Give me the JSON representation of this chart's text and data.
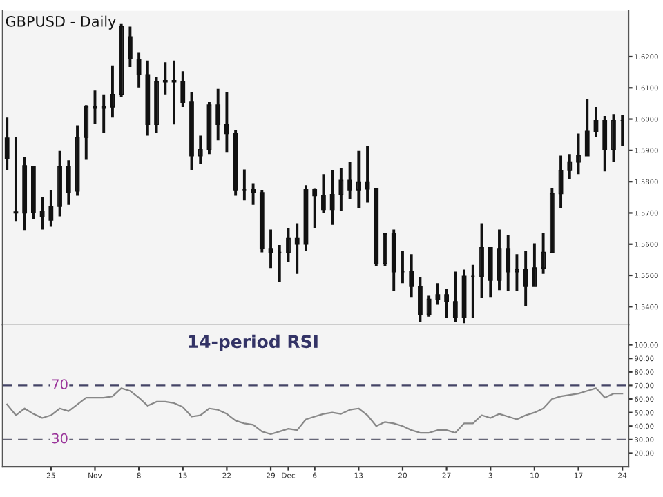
{
  "chart_data": [
    {
      "type": "candlestick",
      "title": "GBPUSD - Daily",
      "color": "#111111",
      "tick_labels": "y",
      "grid": false,
      "categories": [
        null,
        null,
        null,
        null,
        null,
        null,
        null,
        null,
        null,
        null,
        null,
        null,
        null,
        null,
        null,
        null,
        null,
        null,
        null,
        null,
        null,
        null,
        null,
        null,
        null,
        null,
        null,
        null,
        null,
        null,
        null,
        null,
        null,
        null,
        null,
        null,
        null,
        null,
        null,
        null,
        null,
        null,
        null,
        null,
        null,
        null,
        null,
        null,
        null,
        null,
        null,
        null,
        null,
        null,
        null,
        null,
        null,
        null,
        null,
        null,
        null,
        null,
        null,
        null,
        null,
        null,
        null,
        null,
        null,
        null,
        null
      ],
      "ohlc": [
        [
          1.5939,
          1.6005,
          1.5836,
          1.5873
        ],
        [
          1.5703,
          1.5944,
          1.5674,
          1.57
        ],
        [
          1.5851,
          1.588,
          1.5645,
          1.57
        ],
        [
          1.5848,
          1.5851,
          1.5681,
          1.5703
        ],
        [
          1.5706,
          1.5751,
          1.5647,
          1.5689
        ],
        [
          1.5677,
          1.5774,
          1.5656,
          1.5721
        ],
        [
          1.5721,
          1.5898,
          1.5689,
          1.5848
        ],
        [
          1.5848,
          1.5868,
          1.5726,
          1.5765
        ],
        [
          1.577,
          1.598,
          1.5755,
          1.5942
        ],
        [
          1.5942,
          1.6045,
          1.587,
          1.6039
        ],
        [
          1.6039,
          1.6091,
          1.5986,
          1.6035
        ],
        [
          1.6035,
          1.6079,
          1.5957,
          1.6039
        ],
        [
          1.6039,
          1.6172,
          1.6005,
          1.6079
        ],
        [
          1.6079,
          1.6304,
          1.6072,
          1.6296
        ],
        [
          1.6263,
          1.6296,
          1.6167,
          1.6193
        ],
        [
          1.619,
          1.6212,
          1.6101,
          1.6142
        ],
        [
          1.6142,
          1.6187,
          1.5947,
          1.5983
        ],
        [
          1.5983,
          1.6134,
          1.5957,
          1.6119
        ],
        [
          1.6119,
          1.6182,
          1.6079,
          1.6123
        ],
        [
          1.6123,
          1.6187,
          1.5983,
          1.6119
        ],
        [
          1.6119,
          1.6153,
          1.6039,
          1.6054
        ],
        [
          1.6054,
          1.6086,
          1.5836,
          1.5883
        ],
        [
          1.5883,
          1.5947,
          1.5858,
          1.5902
        ],
        [
          1.5902,
          1.6054,
          1.5888,
          1.6045
        ],
        [
          1.6045,
          1.6097,
          1.5932,
          1.5983
        ],
        [
          1.5983,
          1.6086,
          1.5895,
          1.5954
        ],
        [
          1.5954,
          1.5966,
          1.5755,
          1.5774
        ],
        [
          1.5774,
          1.5839,
          1.574,
          1.5774
        ],
        [
          1.5774,
          1.5795,
          1.5726,
          1.5765
        ],
        [
          1.5765,
          1.5774,
          1.5574,
          1.5586
        ],
        [
          1.5586,
          1.5647,
          1.5524,
          1.5574
        ],
        [
          1.5574,
          1.5597,
          1.548,
          1.5574
        ],
        [
          1.5574,
          1.5652,
          1.5544,
          1.5618
        ],
        [
          1.5618,
          1.5667,
          1.5505,
          1.56
        ],
        [
          1.56,
          1.5789,
          1.5578,
          1.5774
        ],
        [
          1.5774,
          1.5777,
          1.5652,
          1.5755
        ],
        [
          1.5755,
          1.5824,
          1.57,
          1.5711
        ],
        [
          1.5711,
          1.5836,
          1.5662,
          1.5759
        ],
        [
          1.5759,
          1.5843,
          1.5706,
          1.5804
        ],
        [
          1.5804,
          1.5863,
          1.5745,
          1.5774
        ],
        [
          1.5774,
          1.5898,
          1.5715,
          1.5799
        ],
        [
          1.5799,
          1.5913,
          1.5733,
          1.5777
        ],
        [
          1.5777,
          1.5777,
          1.553,
          1.5538
        ],
        [
          1.5538,
          1.5637,
          1.553,
          1.5633
        ],
        [
          1.5633,
          1.5647,
          1.545,
          1.5512
        ],
        [
          1.5512,
          1.5578,
          1.5475,
          1.5512
        ],
        [
          1.5512,
          1.5568,
          1.5431,
          1.5465
        ],
        [
          1.5465,
          1.5494,
          1.535,
          1.5376
        ],
        [
          1.5376,
          1.5435,
          1.5368,
          1.5424
        ],
        [
          1.5424,
          1.5475,
          1.5406,
          1.5438
        ],
        [
          1.5438,
          1.5456,
          1.5365,
          1.5416
        ],
        [
          1.5416,
          1.5512,
          1.535,
          1.5365
        ],
        [
          1.5365,
          1.5519,
          1.5347,
          1.5497
        ],
        [
          1.5497,
          1.5534,
          1.5365,
          1.5497
        ],
        [
          1.5497,
          1.5667,
          1.5427,
          1.5589
        ],
        [
          1.5589,
          1.5589,
          1.5431,
          1.5485
        ],
        [
          1.5485,
          1.5647,
          1.5453,
          1.5586
        ],
        [
          1.5586,
          1.563,
          1.545,
          1.5512
        ],
        [
          1.5512,
          1.5568,
          1.545,
          1.5519
        ],
        [
          1.5519,
          1.5578,
          1.5402,
          1.5465
        ],
        [
          1.5465,
          1.5603,
          1.5465,
          1.5524
        ],
        [
          1.5524,
          1.5637,
          1.5505,
          1.5574
        ],
        [
          1.5574,
          1.578,
          1.5574,
          1.5762
        ],
        [
          1.5762,
          1.5883,
          1.5715,
          1.5836
        ],
        [
          1.5836,
          1.5888,
          1.5807,
          1.5863
        ],
        [
          1.5863,
          1.5954,
          1.5824,
          1.5883
        ],
        [
          1.5883,
          1.6064,
          1.5883,
          1.5961
        ],
        [
          1.5961,
          1.6039,
          1.5942,
          1.5995
        ],
        [
          1.5995,
          1.601,
          1.5833,
          1.5902
        ],
        [
          1.5902,
          1.6016,
          1.5863,
          1.5995
        ],
        [
          1.5995,
          1.6013,
          1.5913,
          1.5995
        ]
      ],
      "ylim": [
        1.5343,
        1.6346
      ],
      "yticks": [
        {
          "value": 1.54,
          "label": "1.5400"
        },
        {
          "value": 1.55,
          "label": "1.5500"
        },
        {
          "value": 1.56,
          "label": "1.5600"
        },
        {
          "value": 1.57,
          "label": "1.5700"
        },
        {
          "value": 1.58,
          "label": "1.5800"
        },
        {
          "value": 1.59,
          "label": "1.5900"
        },
        {
          "value": 1.6,
          "label": "1.6000"
        },
        {
          "value": 1.61,
          "label": "1.6100"
        },
        {
          "value": 1.62,
          "label": "1.6200"
        }
      ]
    },
    {
      "type": "line",
      "grid": false,
      "annotations": [
        "14-period RSI"
      ],
      "categories": [
        null,
        null,
        null,
        null,
        null,
        "25",
        null,
        null,
        null,
        null,
        "Nov",
        null,
        null,
        null,
        null,
        "8",
        null,
        null,
        null,
        null,
        "15",
        null,
        null,
        null,
        null,
        "22",
        null,
        null,
        null,
        null,
        "29",
        null,
        "Dec",
        null,
        null,
        "6",
        null,
        null,
        null,
        null,
        "13",
        null,
        null,
        null,
        null,
        "20",
        null,
        null,
        null,
        null,
        "27",
        null,
        null,
        null,
        null,
        "3",
        null,
        null,
        null,
        null,
        "10",
        null,
        null,
        null,
        null,
        "17",
        null,
        null,
        null,
        null,
        "24"
      ],
      "series": [
        {
          "color": "#888888",
          "values": [
            56,
            48,
            53,
            49,
            46,
            48,
            53,
            51,
            56,
            61,
            61,
            61,
            62,
            68,
            66,
            61,
            55,
            58,
            58,
            57,
            54,
            47,
            48,
            53,
            52,
            49,
            44,
            42,
            41,
            36,
            34,
            36,
            38,
            37,
            45,
            47,
            49,
            50,
            49,
            52,
            53,
            48,
            40,
            43,
            42,
            40,
            37,
            35,
            35,
            37,
            37,
            35,
            42,
            42,
            48,
            46,
            49,
            47,
            45,
            48,
            50,
            53,
            60,
            62,
            63,
            64,
            66,
            68,
            61,
            64,
            64
          ]
        }
      ],
      "ylim": [
        10,
        115
      ],
      "yticks": [
        {
          "value": 20,
          "label": "20.00"
        },
        {
          "value": 30,
          "label": "30.00"
        },
        {
          "value": 40,
          "label": "40.00"
        },
        {
          "value": 50,
          "label": "50.00"
        },
        {
          "value": 60,
          "label": "60.00"
        },
        {
          "value": 70,
          "label": "70.00"
        },
        {
          "value": 80,
          "label": "80.00"
        },
        {
          "value": 90,
          "label": "90.00"
        },
        {
          "value": 100,
          "label": "100.00"
        }
      ],
      "ref_lines": [
        {
          "axis": "y",
          "value": 70,
          "label": "70",
          "color": "#444466",
          "line_style": "dashed"
        },
        {
          "axis": "y",
          "value": 30,
          "label": "30",
          "color": "#666677",
          "line_style": "dashed"
        }
      ]
    }
  ]
}
